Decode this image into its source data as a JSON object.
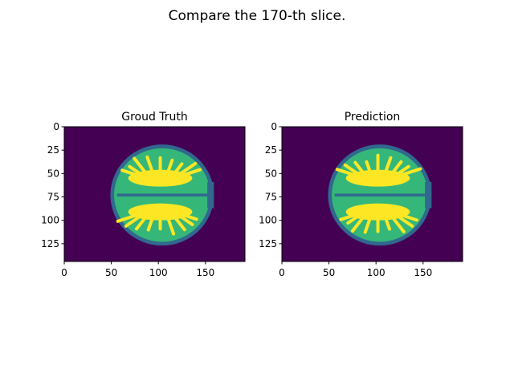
{
  "figure": {
    "suptitle": "Compare the 170-th slice."
  },
  "colors": {
    "background": "#440154",
    "csf": "#31688e",
    "gray_matter": "#35b779",
    "white_matter": "#fde725"
  },
  "chart_data": [
    {
      "type": "heatmap",
      "title": "Groud Truth",
      "xlabel": "",
      "ylabel": "",
      "image_shape": [
        144,
        192
      ],
      "xlim": [
        0,
        192
      ],
      "ylim": [
        144,
        0
      ],
      "x_ticks": [
        0,
        50,
        100,
        150
      ],
      "y_ticks": [
        0,
        25,
        50,
        75,
        100,
        125
      ],
      "x_tick_labels": [
        "0",
        "50",
        "100",
        "150"
      ],
      "y_tick_labels": [
        "0",
        "25",
        "50",
        "75",
        "100",
        "125"
      ],
      "colormap": "viridis",
      "brain": {
        "cx": 104,
        "cy": 73,
        "rx": 55,
        "ry": 54
      },
      "grid": false
    },
    {
      "type": "heatmap",
      "title": "Prediction",
      "xlabel": "",
      "ylabel": "",
      "image_shape": [
        144,
        192
      ],
      "xlim": [
        0,
        192
      ],
      "ylim": [
        144,
        0
      ],
      "x_ticks": [
        0,
        50,
        100,
        150
      ],
      "y_ticks": [
        0,
        25,
        50,
        75,
        100,
        125
      ],
      "x_tick_labels": [
        "0",
        "50",
        "100",
        "150"
      ],
      "y_tick_labels": [
        "0",
        "25",
        "50",
        "75",
        "100",
        "125"
      ],
      "colormap": "viridis",
      "brain": {
        "cx": 104,
        "cy": 73,
        "rx": 55,
        "ry": 54
      },
      "grid": false
    }
  ]
}
